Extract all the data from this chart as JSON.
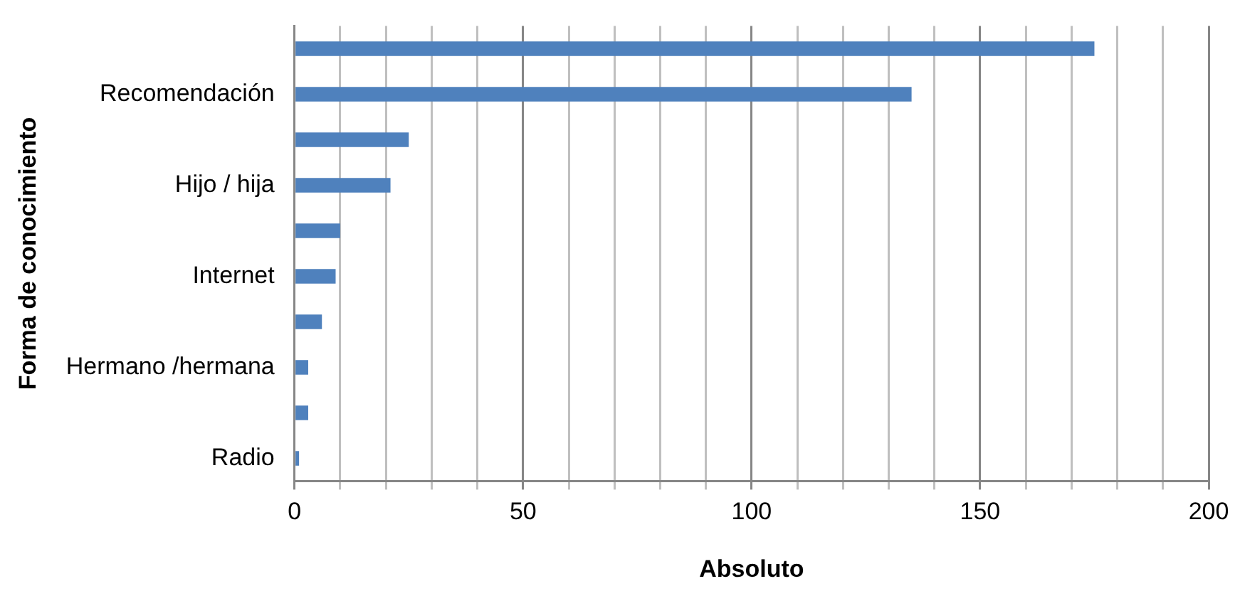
{
  "chart_data": {
    "type": "bar",
    "orientation": "horizontal",
    "xlabel": "Absoluto",
    "ylabel": "Forma de conocimiento",
    "categories": [
      null,
      "Recomendación",
      null,
      "Hijo / hija",
      null,
      "Internet",
      null,
      "Hermano /hermana",
      null,
      "Radio"
    ],
    "values": [
      175,
      135,
      25,
      21,
      10,
      9,
      6,
      3,
      3,
      1
    ],
    "color": "#4f81bd",
    "xlim": [
      0,
      200
    ],
    "xticks": [
      0,
      {
        "value": 10,
        "label": null
      },
      {
        "value": 20,
        "label": null
      },
      {
        "value": 30,
        "label": null
      },
      {
        "value": 40,
        "label": null
      },
      50,
      {
        "value": 60,
        "label": null
      },
      {
        "value": 70,
        "label": null
      },
      {
        "value": 80,
        "label": null
      },
      {
        "value": 90,
        "label": null
      },
      100,
      {
        "value": 110,
        "label": null
      },
      {
        "value": 120,
        "label": null
      },
      {
        "value": 130,
        "label": null
      },
      {
        "value": 140,
        "label": null
      },
      150,
      {
        "value": 160,
        "label": null
      },
      {
        "value": 170,
        "label": null
      },
      {
        "value": 180,
        "label": null
      },
      {
        "value": 190,
        "label": null
      },
      200
    ],
    "grid": "x",
    "legend": false
  }
}
